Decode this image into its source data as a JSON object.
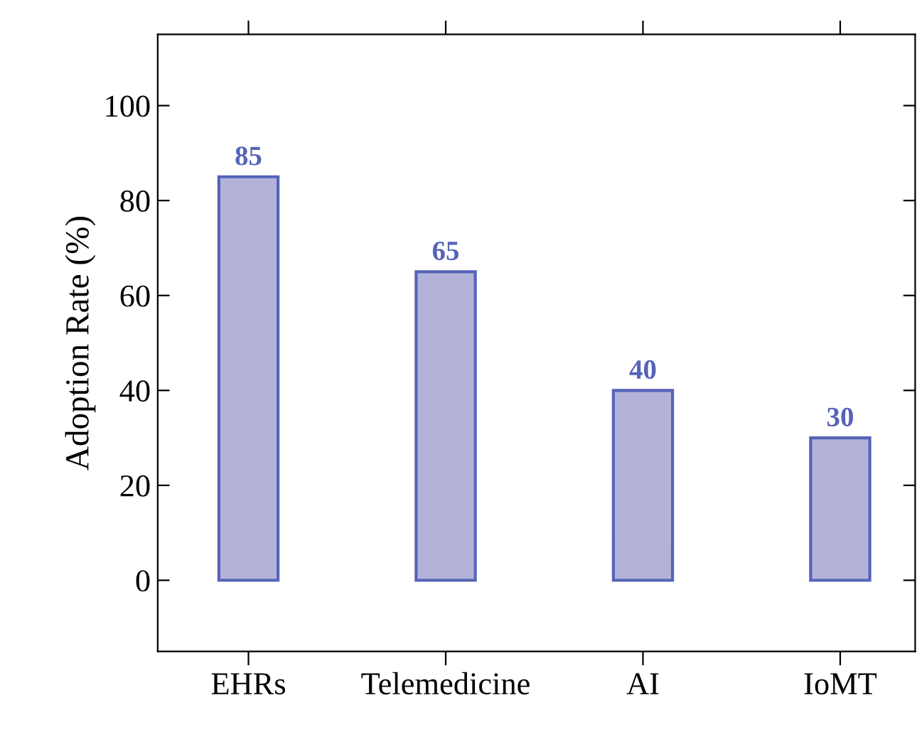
{
  "chart_data": {
    "type": "bar",
    "ylabel": "Adoption Rate (%)",
    "categories": [
      "EHRs",
      "Telemedicine",
      "AI",
      "IoMT"
    ],
    "values": [
      85,
      65,
      40,
      30
    ],
    "color": "#b3b3d9",
    "data_labels": true,
    "ylim": [
      -15,
      115
    ],
    "yticks": [
      0,
      20,
      40,
      60,
      80,
      100
    ],
    "grid": false,
    "legend": false
  }
}
